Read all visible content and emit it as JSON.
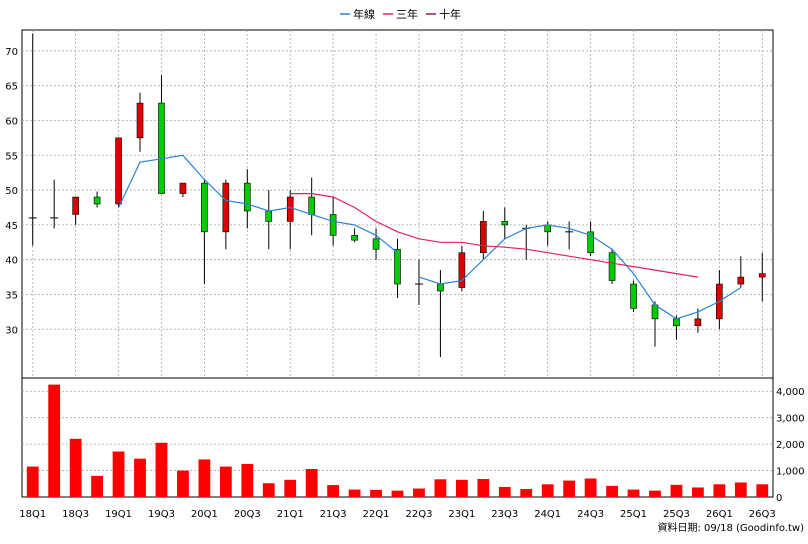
{
  "chart_data": {
    "type": "candlestick",
    "legend": [
      {
        "label": "年線",
        "color": "#2a84d8"
      },
      {
        "label": "三年",
        "color": "#e0245e"
      },
      {
        "label": "十年",
        "color": "#8b1c62"
      }
    ],
    "price_axis": {
      "min": 23,
      "max": 73,
      "ticks": [
        30,
        35,
        40,
        45,
        50,
        55,
        60,
        65,
        70
      ]
    },
    "volume_axis": {
      "min": 0,
      "max": 4500,
      "ticks": [
        0,
        1000,
        2000,
        3000,
        4000
      ],
      "tick_labels": [
        "0",
        "1,000",
        "2,000",
        "3,000",
        "4,000"
      ]
    },
    "x_tick_labels": [
      "18Q1",
      "18Q3",
      "19Q1",
      "19Q3",
      "20Q1",
      "20Q3",
      "21Q1",
      "21Q3",
      "22Q1",
      "22Q3",
      "23Q1",
      "23Q3",
      "24Q1",
      "24Q3",
      "25Q1",
      "25Q3",
      "26Q1",
      "26Q3"
    ],
    "candles": [
      {
        "period": "18Q1",
        "open": 46,
        "high": 72.5,
        "low": 42,
        "close": 46
      },
      {
        "period": "18Q2",
        "open": 46,
        "high": 51.5,
        "low": 44.5,
        "close": 46
      },
      {
        "period": "18Q3",
        "open": 46.5,
        "high": 49,
        "low": 45,
        "close": 49
      },
      {
        "period": "18Q4",
        "open": 49,
        "high": 49.8,
        "low": 47.5,
        "close": 48
      },
      {
        "period": "19Q1",
        "open": 48,
        "high": 57.5,
        "low": 47.5,
        "close": 57.5
      },
      {
        "period": "19Q2",
        "open": 57.5,
        "high": 64,
        "low": 55.5,
        "close": 62.5
      },
      {
        "period": "19Q3",
        "open": 62.5,
        "high": 66.5,
        "low": 49.5,
        "close": 49.5
      },
      {
        "period": "19Q4",
        "open": 49.5,
        "high": 51,
        "low": 49,
        "close": 51
      },
      {
        "period": "20Q1",
        "open": 51,
        "high": 51.5,
        "low": 36.5,
        "close": 44
      },
      {
        "period": "20Q2",
        "open": 44,
        "high": 51.5,
        "low": 41.5,
        "close": 51
      },
      {
        "period": "20Q3",
        "open": 51,
        "high": 53,
        "low": 44.5,
        "close": 47
      },
      {
        "period": "20Q4",
        "open": 47,
        "high": 50,
        "low": 41.5,
        "close": 45.5
      },
      {
        "period": "21Q1",
        "open": 45.5,
        "high": 50,
        "low": 41.5,
        "close": 49
      },
      {
        "period": "21Q2",
        "open": 49,
        "high": 51.8,
        "low": 43.5,
        "close": 46.5
      },
      {
        "period": "21Q3",
        "open": 46.5,
        "high": 49,
        "low": 42,
        "close": 43.5
      },
      {
        "period": "21Q4",
        "open": 43.5,
        "high": 44.5,
        "low": 42.5,
        "close": 42.8
      },
      {
        "period": "22Q1",
        "open": 43,
        "high": 44.5,
        "low": 40,
        "close": 41.5
      },
      {
        "period": "22Q2",
        "open": 41.5,
        "high": 43,
        "low": 34.5,
        "close": 36.5
      },
      {
        "period": "22Q3",
        "open": 36.5,
        "high": 40,
        "low": 33.5,
        "close": 36.5
      },
      {
        "period": "22Q4",
        "open": 36.5,
        "high": 38.5,
        "low": 26,
        "close": 35.5
      },
      {
        "period": "23Q1",
        "open": 36,
        "high": 42,
        "low": 35.5,
        "close": 41
      },
      {
        "period": "23Q2",
        "open": 41,
        "high": 47,
        "low": 40,
        "close": 45.5
      },
      {
        "period": "23Q3",
        "open": 45.5,
        "high": 47.5,
        "low": 43,
        "close": 45
      },
      {
        "period": "23Q4",
        "open": 44.8,
        "high": 45,
        "low": 40,
        "close": 44.5
      },
      {
        "period": "24Q1",
        "open": 45,
        "high": 45.5,
        "low": 42,
        "close": 44
      },
      {
        "period": "24Q2",
        "open": 44,
        "high": 45.5,
        "low": 41.5,
        "close": 44
      },
      {
        "period": "24Q3",
        "open": 44,
        "high": 45.5,
        "low": 40.5,
        "close": 41
      },
      {
        "period": "24Q4",
        "open": 41,
        "high": 41.5,
        "low": 36.5,
        "close": 37
      },
      {
        "period": "25Q1",
        "open": 36.5,
        "high": 37,
        "low": 32.5,
        "close": 33
      },
      {
        "period": "25Q2",
        "open": 33.5,
        "high": 34,
        "low": 27.5,
        "close": 31.5
      },
      {
        "period": "25Q3",
        "open": 31.5,
        "high": 32,
        "low": 28.5,
        "close": 30.5
      },
      {
        "period": "25Q4",
        "open": 30.5,
        "high": 33,
        "low": 29.5,
        "close": 31.5
      },
      {
        "period": "26Q1",
        "open": 31.5,
        "high": 38.5,
        "low": 30,
        "close": 36.5
      },
      {
        "period": "26Q2",
        "open": 36.5,
        "high": 40.5,
        "low": 36,
        "close": 37.5
      },
      {
        "period": "26Q3",
        "open": 37.5,
        "high": 41,
        "low": 34,
        "close": 38
      }
    ],
    "volumes": [
      1150,
      4250,
      2200,
      800,
      1720,
      1450,
      2050,
      1000,
      1420,
      1150,
      1250,
      520,
      650,
      1060,
      450,
      280,
      270,
      240,
      320,
      670,
      650,
      680,
      380,
      300,
      480,
      620,
      700,
      420,
      280,
      240,
      460,
      360,
      480,
      550,
      480
    ],
    "ma_annual": {
      "from_index": 18,
      "values": [
        37.5,
        36.5,
        37,
        40,
        43,
        44.5,
        45,
        44.5,
        43.5,
        41.5,
        38,
        33.5,
        31.5,
        32.5,
        34,
        36
      ]
    },
    "ma_annual_early": {
      "from_index": 0,
      "values": [
        null,
        null,
        null,
        null,
        47.5,
        54,
        54.5,
        55,
        51.5,
        48.5,
        48,
        47,
        47.5,
        46.5,
        45.5,
        45,
        43.5,
        41
      ]
    },
    "ma_three_year": {
      "from_index": 12,
      "values": [
        49.5,
        49.5,
        49,
        47.5,
        45.5,
        44,
        43,
        42.5,
        42.5,
        42,
        41.8,
        41.5,
        41,
        40.5,
        40,
        39.5,
        39,
        38.5,
        38,
        37.5
      ]
    },
    "footer": "資料日期: 09/18  (Goodinfo.tw)"
  }
}
